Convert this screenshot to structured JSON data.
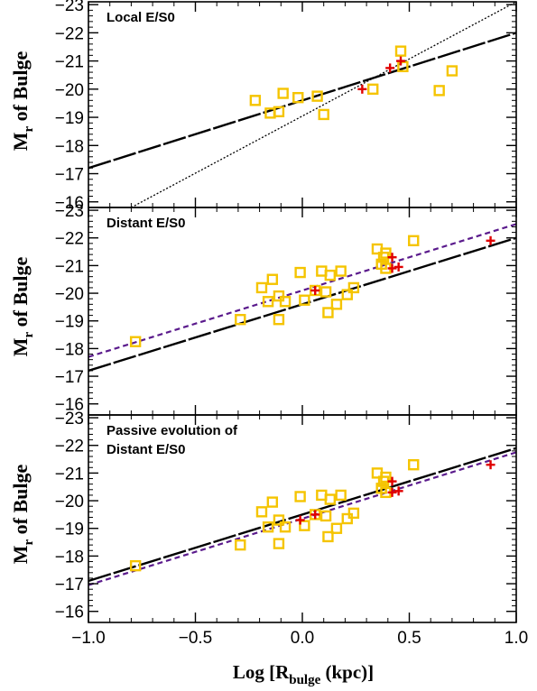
{
  "chart_data": {
    "type": "scatter",
    "xlabel": "Log [R",
    "xlabel_sub": "bulge",
    "xlabel_tail": " (kpc)]",
    "ylabel_main": "M",
    "ylabel_sub": "r",
    "ylabel_tail": " of Bulge",
    "xlim": [
      -1.0,
      1.0
    ],
    "x_ticks": [
      -1.0,
      -0.5,
      0.0,
      0.5,
      1.0
    ],
    "x_tick_labels": [
      "−1.0",
      "−0.5",
      "0.0",
      "0.5",
      "1.0"
    ],
    "colors": {
      "squares": "#f5c400",
      "crosses": "#e00000",
      "fit": "#000000",
      "local": "#000000",
      "dashed": "#5a1a8c"
    },
    "panels": [
      {
        "label_lines": [
          "Local E/S0"
        ],
        "ylim": [
          -15.8,
          -23.1
        ],
        "y_ticks": [
          -16,
          -17,
          -18,
          -19,
          -20,
          -21,
          -22,
          -23
        ],
        "y_tick_labels": [
          "−16",
          "−17",
          "−18",
          "−19",
          "−20",
          "−21",
          "−22",
          "−23"
        ],
        "squares": [
          [
            -0.22,
            -19.6
          ],
          [
            -0.15,
            -19.15
          ],
          [
            -0.11,
            -19.2
          ],
          [
            -0.09,
            -19.85
          ],
          [
            -0.02,
            -19.7
          ],
          [
            0.07,
            -19.75
          ],
          [
            0.1,
            -19.1
          ],
          [
            0.33,
            -20.0
          ],
          [
            0.46,
            -21.35
          ],
          [
            0.47,
            -20.8
          ],
          [
            0.64,
            -19.95
          ],
          [
            0.7,
            -20.65
          ]
        ],
        "crosses": [
          [
            0.28,
            -20.0
          ],
          [
            0.41,
            -20.75
          ],
          [
            0.46,
            -21.0
          ]
        ],
        "lines": [
          {
            "kind": "fit",
            "x": [
              -1.0,
              1.0
            ],
            "y": [
              -17.2,
              -22.0
            ]
          },
          {
            "kind": "local",
            "x": [
              -0.8,
              1.0
            ],
            "y": [
              -15.8,
              -23.1
            ]
          }
        ]
      },
      {
        "label_lines": [
          "Distant E/S0"
        ],
        "ylim": [
          -15.6,
          -23.1
        ],
        "y_ticks": [
          -16,
          -17,
          -18,
          -19,
          -20,
          -21,
          -22,
          -23
        ],
        "y_tick_labels": [
          "−16",
          "−17",
          "−18",
          "−19",
          "−20",
          "−21",
          "−22",
          "−23"
        ],
        "squares": [
          [
            -0.78,
            -18.25
          ],
          [
            -0.29,
            -19.05
          ],
          [
            -0.19,
            -20.2
          ],
          [
            -0.16,
            -19.7
          ],
          [
            -0.14,
            -20.5
          ],
          [
            -0.11,
            -19.05
          ],
          [
            -0.11,
            -19.9
          ],
          [
            -0.08,
            -19.7
          ],
          [
            -0.01,
            -20.75
          ],
          [
            0.01,
            -19.75
          ],
          [
            0.06,
            -20.1
          ],
          [
            0.09,
            -20.8
          ],
          [
            0.11,
            -20.05
          ],
          [
            0.12,
            -19.3
          ],
          [
            0.13,
            -20.65
          ],
          [
            0.16,
            -19.6
          ],
          [
            0.18,
            -20.8
          ],
          [
            0.21,
            -19.95
          ],
          [
            0.24,
            -20.2
          ],
          [
            0.35,
            -21.6
          ],
          [
            0.37,
            -21.05
          ],
          [
            0.38,
            -21.3
          ],
          [
            0.39,
            -21.45
          ],
          [
            0.39,
            -20.9
          ],
          [
            0.52,
            -21.9
          ]
        ],
        "crosses": [
          [
            0.06,
            -20.1
          ],
          [
            0.42,
            -21.3
          ],
          [
            0.42,
            -20.9
          ],
          [
            0.45,
            -20.95
          ],
          [
            0.88,
            -21.9
          ]
        ],
        "lines": [
          {
            "kind": "fit",
            "x": [
              -1.0,
              1.0
            ],
            "y": [
              -17.2,
              -22.0
            ]
          },
          {
            "kind": "dashed",
            "x": [
              -1.0,
              1.0
            ],
            "y": [
              -17.7,
              -22.5
            ]
          }
        ]
      },
      {
        "label_lines": [
          "Passive evolution of",
          "Distant E/S0"
        ],
        "ylim": [
          -15.6,
          -23.1
        ],
        "y_ticks": [
          -16,
          -17,
          -18,
          -19,
          -20,
          -21,
          -22,
          -23
        ],
        "y_tick_labels": [
          "−16",
          "−17",
          "−18",
          "−19",
          "−20",
          "−21",
          "−22",
          "−23"
        ],
        "squares": [
          [
            -0.78,
            -17.65
          ],
          [
            -0.29,
            -18.4
          ],
          [
            -0.19,
            -19.6
          ],
          [
            -0.16,
            -19.05
          ],
          [
            -0.14,
            -19.95
          ],
          [
            -0.11,
            -18.45
          ],
          [
            -0.11,
            -19.3
          ],
          [
            -0.08,
            -19.05
          ],
          [
            -0.01,
            -20.15
          ],
          [
            0.01,
            -19.1
          ],
          [
            0.06,
            -19.5
          ],
          [
            0.09,
            -20.2
          ],
          [
            0.11,
            -19.45
          ],
          [
            0.12,
            -18.7
          ],
          [
            0.13,
            -20.05
          ],
          [
            0.16,
            -19.0
          ],
          [
            0.18,
            -20.2
          ],
          [
            0.21,
            -19.35
          ],
          [
            0.24,
            -19.55
          ],
          [
            0.35,
            -21.0
          ],
          [
            0.37,
            -20.45
          ],
          [
            0.38,
            -20.7
          ],
          [
            0.39,
            -20.85
          ],
          [
            0.39,
            -20.3
          ],
          [
            0.52,
            -21.3
          ]
        ],
        "crosses": [
          [
            -0.01,
            -19.3
          ],
          [
            0.06,
            -19.5
          ],
          [
            0.42,
            -20.7
          ],
          [
            0.42,
            -20.3
          ],
          [
            0.45,
            -20.35
          ],
          [
            0.88,
            -21.3
          ]
        ],
        "lines": [
          {
            "kind": "fit",
            "x": [
              -1.0,
              1.0
            ],
            "y": [
              -17.1,
              -21.9
            ]
          },
          {
            "kind": "dashed",
            "x": [
              -1.0,
              1.0
            ],
            "y": [
              -16.95,
              -21.75
            ]
          }
        ]
      }
    ]
  }
}
